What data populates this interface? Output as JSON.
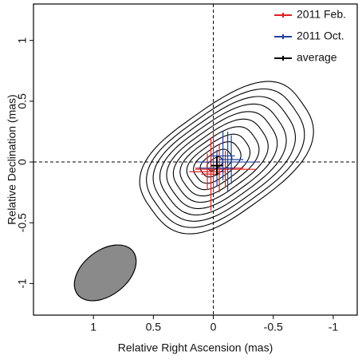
{
  "chart_data": {
    "type": "errorbar",
    "xlabel": "Relative Right Ascension (mas)",
    "ylabel": "Relative Declination (mas)",
    "xlim": [
      1.5,
      -1.2
    ],
    "ylim": [
      -1.26,
      1.3
    ],
    "xticks": [
      1,
      0.5,
      0,
      -0.5,
      -1
    ],
    "yticks": [
      -1,
      -0.5,
      0,
      0.5,
      1
    ],
    "legend": "upper right",
    "series": [
      {
        "name": "2011 Feb.",
        "color": "#e02020",
        "x": [
          0.05,
          -0.05,
          0.0,
          -0.1,
          0.02
        ],
        "y": [
          -0.08,
          -0.05,
          0.0,
          -0.06,
          -0.1
        ],
        "xerr": [
          0.15,
          0.2,
          0.1,
          0.25,
          0.08
        ],
        "yerr": [
          0.15,
          0.2,
          0.25,
          0.15,
          0.3
        ]
      },
      {
        "name": "2011 Oct.",
        "color": "#2040a0",
        "x": [
          -0.08,
          -0.12,
          -0.03,
          -0.15
        ],
        "y": [
          0.05,
          0.0,
          -0.05,
          0.02
        ],
        "xerr": [
          0.1,
          0.25,
          0.15,
          0.1
        ],
        "yerr": [
          0.2,
          0.25,
          0.15,
          0.2
        ]
      },
      {
        "name": "average",
        "color": "#000000",
        "x": [
          -0.03
        ],
        "y": [
          -0.03
        ],
        "xerr": [
          0.05
        ],
        "yerr": [
          0.08
        ]
      }
    ]
  }
}
